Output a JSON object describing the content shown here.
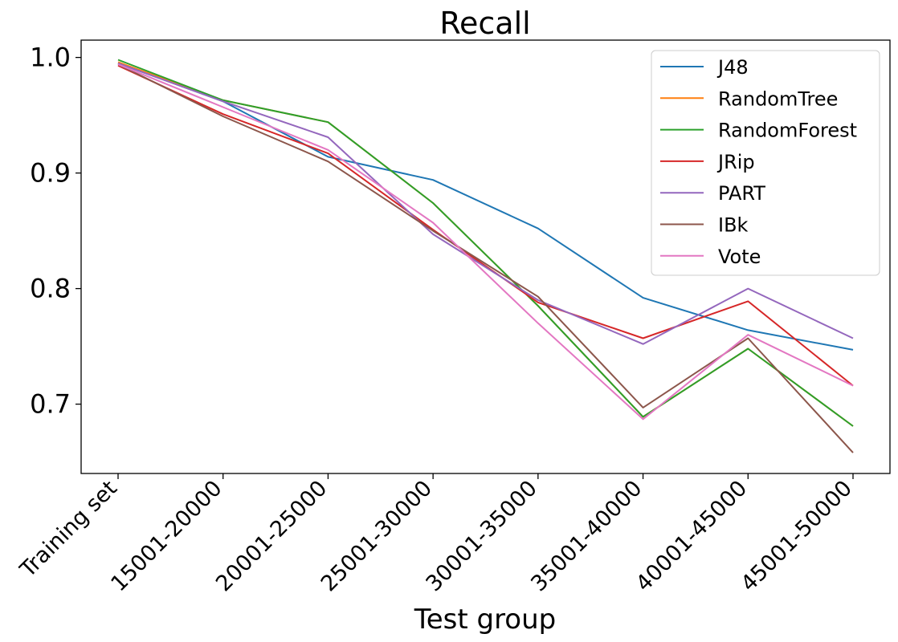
{
  "chart_data": {
    "type": "line",
    "title": "Recall",
    "xlabel": "Test group",
    "ylabel": "",
    "categories": [
      "Training set",
      "15001-20000",
      "20001-25000",
      "25001-30000",
      "30001-35000",
      "35001-40000",
      "40001-45000",
      "45001-50000"
    ],
    "ylim": [
      0.64,
      1.015
    ],
    "yticks": [
      0.7,
      0.8,
      0.9,
      1.0
    ],
    "ytick_labels": [
      "0.7",
      "0.8",
      "0.9",
      "1.0"
    ],
    "grid": false,
    "legend_position": "top-right",
    "series": [
      {
        "name": "J48",
        "color": "#1f77b4",
        "values": [
          0.995,
          0.962,
          0.914,
          0.894,
          0.852,
          0.792,
          0.764,
          0.747
        ]
      },
      {
        "name": "RandomTree",
        "color": "#ff7f0e",
        "values": [
          0.996,
          0.963,
          0.944,
          0.874,
          0.785,
          0.689,
          0.748,
          0.681
        ]
      },
      {
        "name": "RandomForest",
        "color": "#2ca02c",
        "values": [
          0.998,
          0.963,
          0.944,
          0.874,
          0.785,
          0.689,
          0.748,
          0.681
        ]
      },
      {
        "name": "JRip",
        "color": "#d62728",
        "values": [
          0.993,
          0.951,
          0.917,
          0.851,
          0.788,
          0.757,
          0.789,
          0.716
        ]
      },
      {
        "name": "PART",
        "color": "#9467bd",
        "values": [
          0.995,
          0.962,
          0.931,
          0.847,
          0.79,
          0.752,
          0.8,
          0.757
        ]
      },
      {
        "name": "IBk",
        "color": "#8c564b",
        "values": [
          0.994,
          0.949,
          0.91,
          0.85,
          0.793,
          0.697,
          0.757,
          0.658
        ]
      },
      {
        "name": "Vote",
        "color": "#e377c2",
        "values": [
          0.994,
          0.957,
          0.92,
          0.857,
          0.77,
          0.687,
          0.76,
          0.716
        ]
      }
    ]
  }
}
